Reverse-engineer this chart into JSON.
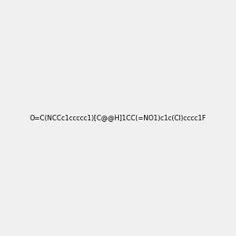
{
  "smiles": "O=C(NCCc1ccccc1)[C@@H]1CC(=NO1)c1c(Cl)cccc1F",
  "image_size": 300,
  "background_color": "#f0f0f0"
}
